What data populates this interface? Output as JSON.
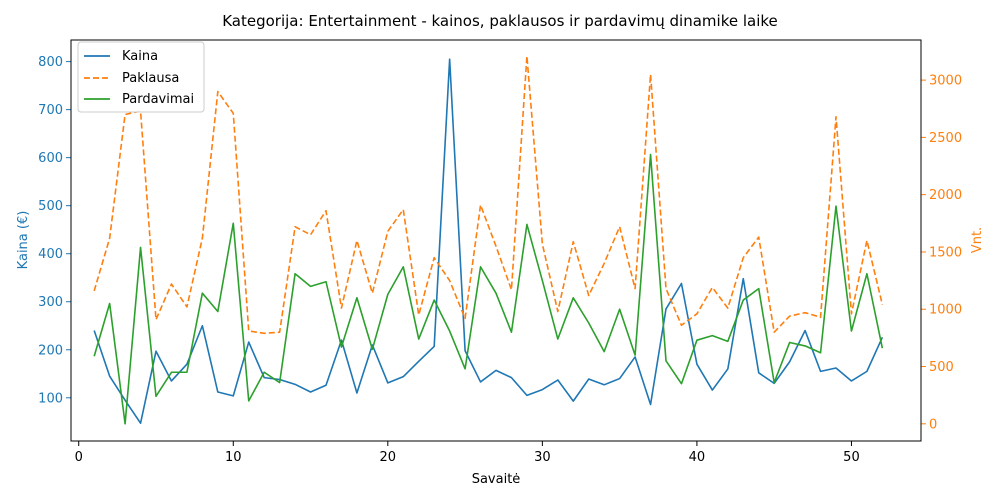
{
  "chart_data": {
    "type": "line",
    "title": "Kategorija: Entertainment - kainos, paklausos ir pardavimų dinamike laike",
    "xlabel": "Savaitė",
    "ylabel_left": "Kaina (€)",
    "ylabel_right": "Vnt.",
    "xlim": [
      -0.5,
      54.5
    ],
    "ylim_left": [
      10,
      845
    ],
    "ylim_right": [
      -150,
      3350
    ],
    "xticks": [
      0,
      10,
      20,
      30,
      40,
      50
    ],
    "yticks_left": [
      100,
      200,
      300,
      400,
      500,
      600,
      700,
      800
    ],
    "yticks_right": [
      0,
      500,
      1000,
      1500,
      2000,
      2500,
      3000
    ],
    "legend_position": "upper-left",
    "colors": {
      "kaina": "#1f77b4",
      "paklausa": "#ff7f0e",
      "pardavimai": "#2ca02c"
    },
    "x": [
      1,
      2,
      3,
      4,
      5,
      6,
      7,
      8,
      9,
      10,
      11,
      12,
      13,
      14,
      15,
      16,
      17,
      18,
      19,
      20,
      21,
      22,
      23,
      24,
      25,
      26,
      27,
      28,
      29,
      30,
      31,
      32,
      33,
      34,
      35,
      36,
      37,
      38,
      39,
      40,
      41,
      42,
      43,
      44,
      45,
      46,
      47,
      48,
      49,
      50,
      51,
      52
    ],
    "series": [
      {
        "name": "Kaina",
        "axis": "left",
        "style": "solid",
        "values": [
          240,
          145,
          95,
          47,
          197,
          135,
          170,
          250,
          112,
          104,
          216,
          142,
          138,
          128,
          112,
          126,
          220,
          110,
          210,
          131,
          144,
          176,
          207,
          805,
          198,
          133,
          157,
          142,
          105,
          117,
          137,
          93,
          139,
          127,
          140,
          185,
          86,
          285,
          338,
          170,
          116,
          160,
          348,
          152,
          130,
          175,
          240,
          155,
          162,
          135,
          155,
          226
        ]
      },
      {
        "name": "Paklausa",
        "axis": "right",
        "style": "dashed",
        "values": [
          1160,
          1620,
          2700,
          2730,
          910,
          1220,
          1020,
          1620,
          2900,
          2710,
          810,
          790,
          800,
          1720,
          1650,
          1860,
          1010,
          1600,
          1140,
          1680,
          1870,
          950,
          1450,
          1250,
          920,
          1910,
          1550,
          1170,
          3210,
          1570,
          980,
          1590,
          1120,
          1400,
          1720,
          1180,
          3050,
          1180,
          860,
          960,
          1190,
          1010,
          1450,
          1630,
          800,
          940,
          970,
          930,
          2680,
          960,
          1600,
          1040
        ]
      },
      {
        "name": "Pardavimai",
        "axis": "right",
        "style": "solid",
        "values": [
          590,
          1050,
          0,
          1540,
          240,
          450,
          450,
          1140,
          980,
          1750,
          200,
          450,
          360,
          1310,
          1200,
          1240,
          670,
          1100,
          650,
          1130,
          1370,
          740,
          1080,
          810,
          480,
          1370,
          1140,
          800,
          1740,
          1250,
          740,
          1100,
          880,
          630,
          1000,
          600,
          2350,
          550,
          350,
          730,
          770,
          720,
          1080,
          1180,
          360,
          710,
          680,
          620,
          1900,
          810,
          1310,
          660
        ]
      }
    ]
  }
}
